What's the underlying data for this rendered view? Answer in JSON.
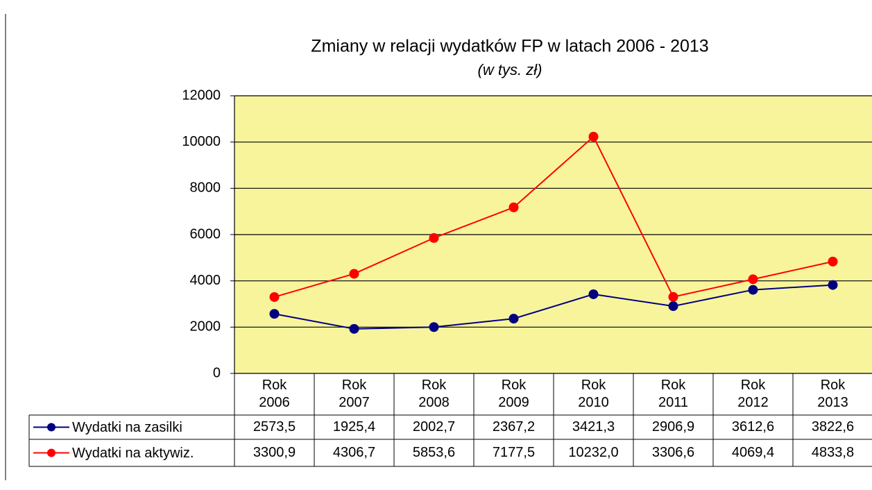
{
  "chart_data": {
    "type": "line",
    "title": "Zmiany w relacji wydatków FP w latach 2006 - 2013",
    "subtitle": "(w tys. zł)",
    "categories": [
      "Rok 2006",
      "Rok 2007",
      "Rok 2008",
      "Rok 2009",
      "Rok 2010",
      "Rok 2011",
      "Rok 2012",
      "Rok 2013"
    ],
    "series": [
      {
        "name": "Wydatki na zasilki",
        "color": "#000080",
        "values": [
          2573.5,
          1925.4,
          2002.7,
          2367.2,
          3421.3,
          2906.9,
          3612.6,
          3822.6
        ],
        "value_labels": [
          "2573,5",
          "1925,4",
          "2002,7",
          "2367,2",
          "3421,3",
          "2906,9",
          "3612,6",
          "3822,6"
        ]
      },
      {
        "name": "Wydatki na aktywiz.",
        "color": "#ff0000",
        "values": [
          3300.9,
          4306.7,
          5853.6,
          7177.5,
          10232.0,
          3306.6,
          4069.4,
          4833.8
        ],
        "value_labels": [
          "3300,9",
          "4306,7",
          "5853,6",
          "7177,5",
          "10232,0",
          "3306,6",
          "4069,4",
          "4833,8"
        ]
      }
    ],
    "ylim": [
      0,
      12000
    ],
    "yticks": [
      0,
      2000,
      4000,
      6000,
      8000,
      10000,
      12000
    ],
    "grid": true,
    "plot_color": "#f8f49c"
  }
}
